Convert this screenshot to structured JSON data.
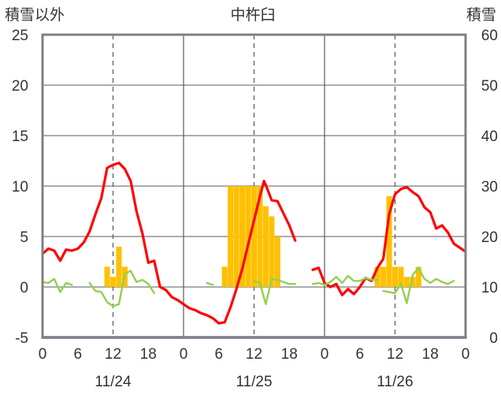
{
  "chart_data": {
    "type": "line",
    "title": "中杵臼",
    "ylabel_left": "積雪以外",
    "ylabel_right": "積雪",
    "left_ylim": [
      -5,
      25
    ],
    "right_ylim": [
      0,
      60
    ],
    "left_ticks": [
      "25",
      "20",
      "15",
      "10",
      "5",
      "0",
      "-5"
    ],
    "right_ticks": [
      "60",
      "50",
      "40",
      "30",
      "20",
      "10",
      "0"
    ],
    "x_hour_ticks": [
      "0",
      "6",
      "12",
      "18",
      "0",
      "6",
      "12",
      "18",
      "0",
      "6",
      "12",
      "18",
      "0"
    ],
    "date_labels": [
      "11/24",
      "11/25",
      "11/26"
    ],
    "x_range_hours": [
      0,
      72
    ],
    "grid": true,
    "colors": {
      "temperature": "#ff0000",
      "green_series": "#92d050",
      "snowfall": "#ffc000",
      "snow_depth": "#7030a0",
      "frame": "#808080",
      "grid": "#595959"
    },
    "series": [
      {
        "color": "#ff0000",
        "axis": "left",
        "segments": [
          [
            [
              0,
              3.3
            ],
            [
              1,
              3.8
            ],
            [
              2,
              3.6
            ],
            [
              3,
              2.6
            ],
            [
              4,
              3.7
            ],
            [
              5,
              3.6
            ],
            [
              6,
              3.8
            ],
            [
              7,
              4.4
            ],
            [
              8,
              5.5
            ],
            [
              9,
              7.2
            ],
            [
              10,
              8.8
            ],
            [
              11,
              11.8
            ],
            [
              12,
              12.1
            ],
            [
              13,
              12.3
            ],
            [
              14,
              11.7
            ],
            [
              15,
              10.5
            ],
            [
              16,
              7.5
            ],
            [
              17,
              5.3
            ],
            [
              18,
              2.4
            ],
            [
              19,
              2.6
            ],
            [
              20,
              0
            ],
            [
              21,
              -0.3
            ],
            [
              22,
              -1.0
            ],
            [
              23,
              -1.3
            ],
            [
              24,
              -1.7
            ],
            [
              25,
              -2.1
            ],
            [
              26,
              -2.3
            ],
            [
              27,
              -2.6
            ],
            [
              28,
              -2.8
            ],
            [
              29,
              -3.1
            ],
            [
              30,
              -3.6
            ],
            [
              31,
              -3.5
            ],
            [
              32,
              -2.0
            ],
            [
              33,
              -0.2
            ],
            [
              34,
              1.8
            ],
            [
              35,
              4.2
            ],
            [
              36,
              6.6
            ],
            [
              37,
              9.0
            ],
            [
              37.7,
              10.5
            ],
            [
              38,
              10.1
            ],
            [
              39,
              8.6
            ],
            [
              40,
              8.5
            ],
            [
              41,
              7.3
            ],
            [
              42,
              6.1
            ],
            [
              43,
              4.6
            ]
          ],
          [
            [
              46,
              1.7
            ],
            [
              47,
              1.9
            ],
            [
              48,
              0.4
            ],
            [
              49,
              0
            ],
            [
              50,
              0.3
            ],
            [
              51,
              -0.8
            ],
            [
              52,
              -0.2
            ],
            [
              53,
              -0.7
            ],
            [
              54,
              0
            ],
            [
              55,
              0.9
            ],
            [
              56,
              0.6
            ],
            [
              57,
              1.9
            ],
            [
              58,
              2.8
            ],
            [
              59,
              7.2
            ],
            [
              60,
              9.2
            ],
            [
              61,
              9.7
            ],
            [
              62,
              9.9
            ],
            [
              63,
              9.4
            ],
            [
              64,
              9.0
            ],
            [
              65,
              7.9
            ],
            [
              66,
              7.4
            ],
            [
              67,
              5.8
            ],
            [
              68,
              6.1
            ],
            [
              69,
              5.4
            ],
            [
              70,
              4.3
            ],
            [
              71,
              3.9
            ],
            [
              72,
              3.5
            ]
          ]
        ]
      },
      {
        "color": "#92d050",
        "axis": "left",
        "segments": [
          [
            [
              0,
              0.5
            ],
            [
              1,
              0.4
            ],
            [
              2,
              0.8
            ],
            [
              3,
              -0.5
            ],
            [
              4,
              0.4
            ],
            [
              5,
              0.2
            ]
          ],
          [
            [
              8,
              0.4
            ],
            [
              9,
              -0.4
            ],
            [
              10,
              -0.5
            ],
            [
              11,
              -1.5
            ],
            [
              12,
              -1.9
            ],
            [
              13,
              -1.7
            ],
            [
              14,
              1.3
            ],
            [
              15,
              1.6
            ],
            [
              16,
              0.5
            ],
            [
              17,
              0.7
            ],
            [
              18,
              0.3
            ],
            [
              19,
              -0.6
            ]
          ],
          [
            [
              28,
              0.4
            ],
            [
              29,
              0.2
            ]
          ],
          [
            [
              36,
              0.6
            ],
            [
              37,
              0.4
            ],
            [
              38,
              -1.7
            ],
            [
              39,
              0.8
            ],
            [
              40,
              0.7
            ],
            [
              41,
              0.5
            ],
            [
              42,
              0.3
            ],
            [
              43,
              0.3
            ]
          ],
          [
            [
              46,
              0.3
            ],
            [
              47,
              0.4
            ],
            [
              48,
              0.2
            ],
            [
              49,
              0.5
            ],
            [
              50,
              1.0
            ],
            [
              51,
              0.4
            ],
            [
              52,
              1.1
            ],
            [
              53,
              0.6
            ],
            [
              54,
              0.6
            ],
            [
              55,
              0.9
            ],
            [
              56,
              0.7
            ],
            [
              57,
              0.7
            ]
          ],
          [
            [
              58,
              -0.4
            ],
            [
              59,
              -0.5
            ],
            [
              60,
              -0.6
            ],
            [
              61,
              0.3
            ],
            [
              62,
              -1.6
            ],
            [
              63,
              1.2
            ],
            [
              64,
              1.9
            ],
            [
              65,
              0.8
            ],
            [
              66,
              0.4
            ],
            [
              67,
              0.8
            ],
            [
              68,
              0.5
            ],
            [
              69,
              0.3
            ],
            [
              70,
              0.6
            ]
          ]
        ]
      },
      {
        "color": "#7030a0",
        "axis": "left",
        "segments": [
          [
            [
              0,
              -5
            ],
            [
              72,
              -5
            ]
          ]
        ]
      }
    ],
    "bars": {
      "color": "#ffc000",
      "axis": "right",
      "points": [
        [
          11,
          14
        ],
        [
          12,
          12
        ],
        [
          13,
          18
        ],
        [
          14,
          14
        ],
        [
          31,
          14
        ],
        [
          32,
          30
        ],
        [
          33,
          30
        ],
        [
          34,
          30
        ],
        [
          35,
          30
        ],
        [
          36,
          30
        ],
        [
          37,
          30
        ],
        [
          38,
          26
        ],
        [
          39,
          24
        ],
        [
          40,
          20
        ],
        [
          57,
          14
        ],
        [
          58,
          14
        ],
        [
          59,
          28
        ],
        [
          60,
          14
        ],
        [
          61,
          14
        ],
        [
          62,
          12
        ],
        [
          63,
          12
        ],
        [
          64,
          14
        ]
      ]
    }
  }
}
